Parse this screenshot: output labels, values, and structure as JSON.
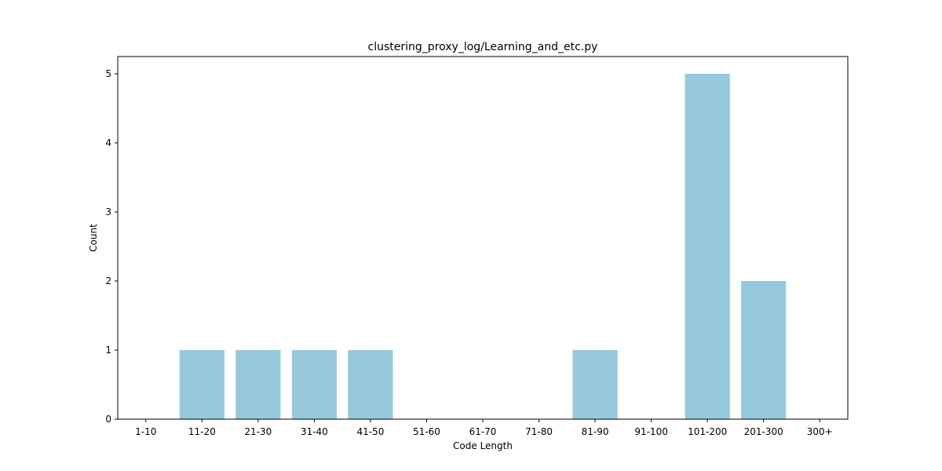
{
  "chart_data": {
    "type": "bar",
    "title": "clustering_proxy_log/Learning_and_etc.py",
    "xlabel": "Code Length",
    "ylabel": "Count",
    "categories": [
      "1-10",
      "11-20",
      "21-30",
      "31-40",
      "41-50",
      "51-60",
      "61-70",
      "71-80",
      "81-90",
      "91-100",
      "101-200",
      "201-300",
      "300+"
    ],
    "values": [
      0,
      1,
      1,
      1,
      1,
      0,
      0,
      0,
      1,
      0,
      5,
      2,
      0
    ],
    "yticks": [
      0,
      1,
      2,
      3,
      4,
      5
    ],
    "ylim": [
      0,
      5.25
    ],
    "grid": false,
    "legend": "none",
    "bar_color": "#96c9dc",
    "axis_color": "#000000"
  }
}
